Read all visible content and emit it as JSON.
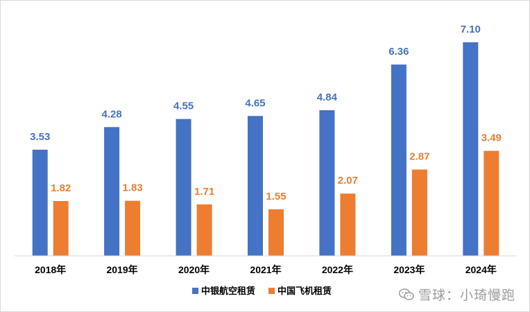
{
  "chart_data": {
    "type": "bar",
    "categories": [
      "2018年",
      "2019年",
      "2020年",
      "2021年",
      "2022年",
      "2023年",
      "2024年"
    ],
    "series": [
      {
        "name": "中银航空租赁",
        "color": "#4472C4",
        "values": [
          3.53,
          4.28,
          4.55,
          4.65,
          4.84,
          6.36,
          7.1
        ],
        "labels": [
          "3.53",
          "4.28",
          "4.55",
          "4.65",
          "4.84",
          "6.36",
          "7.10"
        ]
      },
      {
        "name": "中国飞机租赁",
        "color": "#ED7D31",
        "values": [
          1.82,
          1.83,
          1.71,
          1.55,
          2.07,
          2.87,
          3.49
        ],
        "labels": [
          "1.82",
          "1.83",
          "1.71",
          "1.55",
          "2.07",
          "2.87",
          "3.49"
        ]
      }
    ],
    "title": "",
    "xlabel": "",
    "ylabel": "",
    "ylim": [
      0,
      7.1
    ],
    "grid": false,
    "legend_position": "bottom",
    "colors": {
      "axis": "#d9d9d9",
      "text": "#000000"
    }
  },
  "watermark": {
    "text": "雪球：小琦慢跑",
    "icon": "wechat-icon"
  }
}
